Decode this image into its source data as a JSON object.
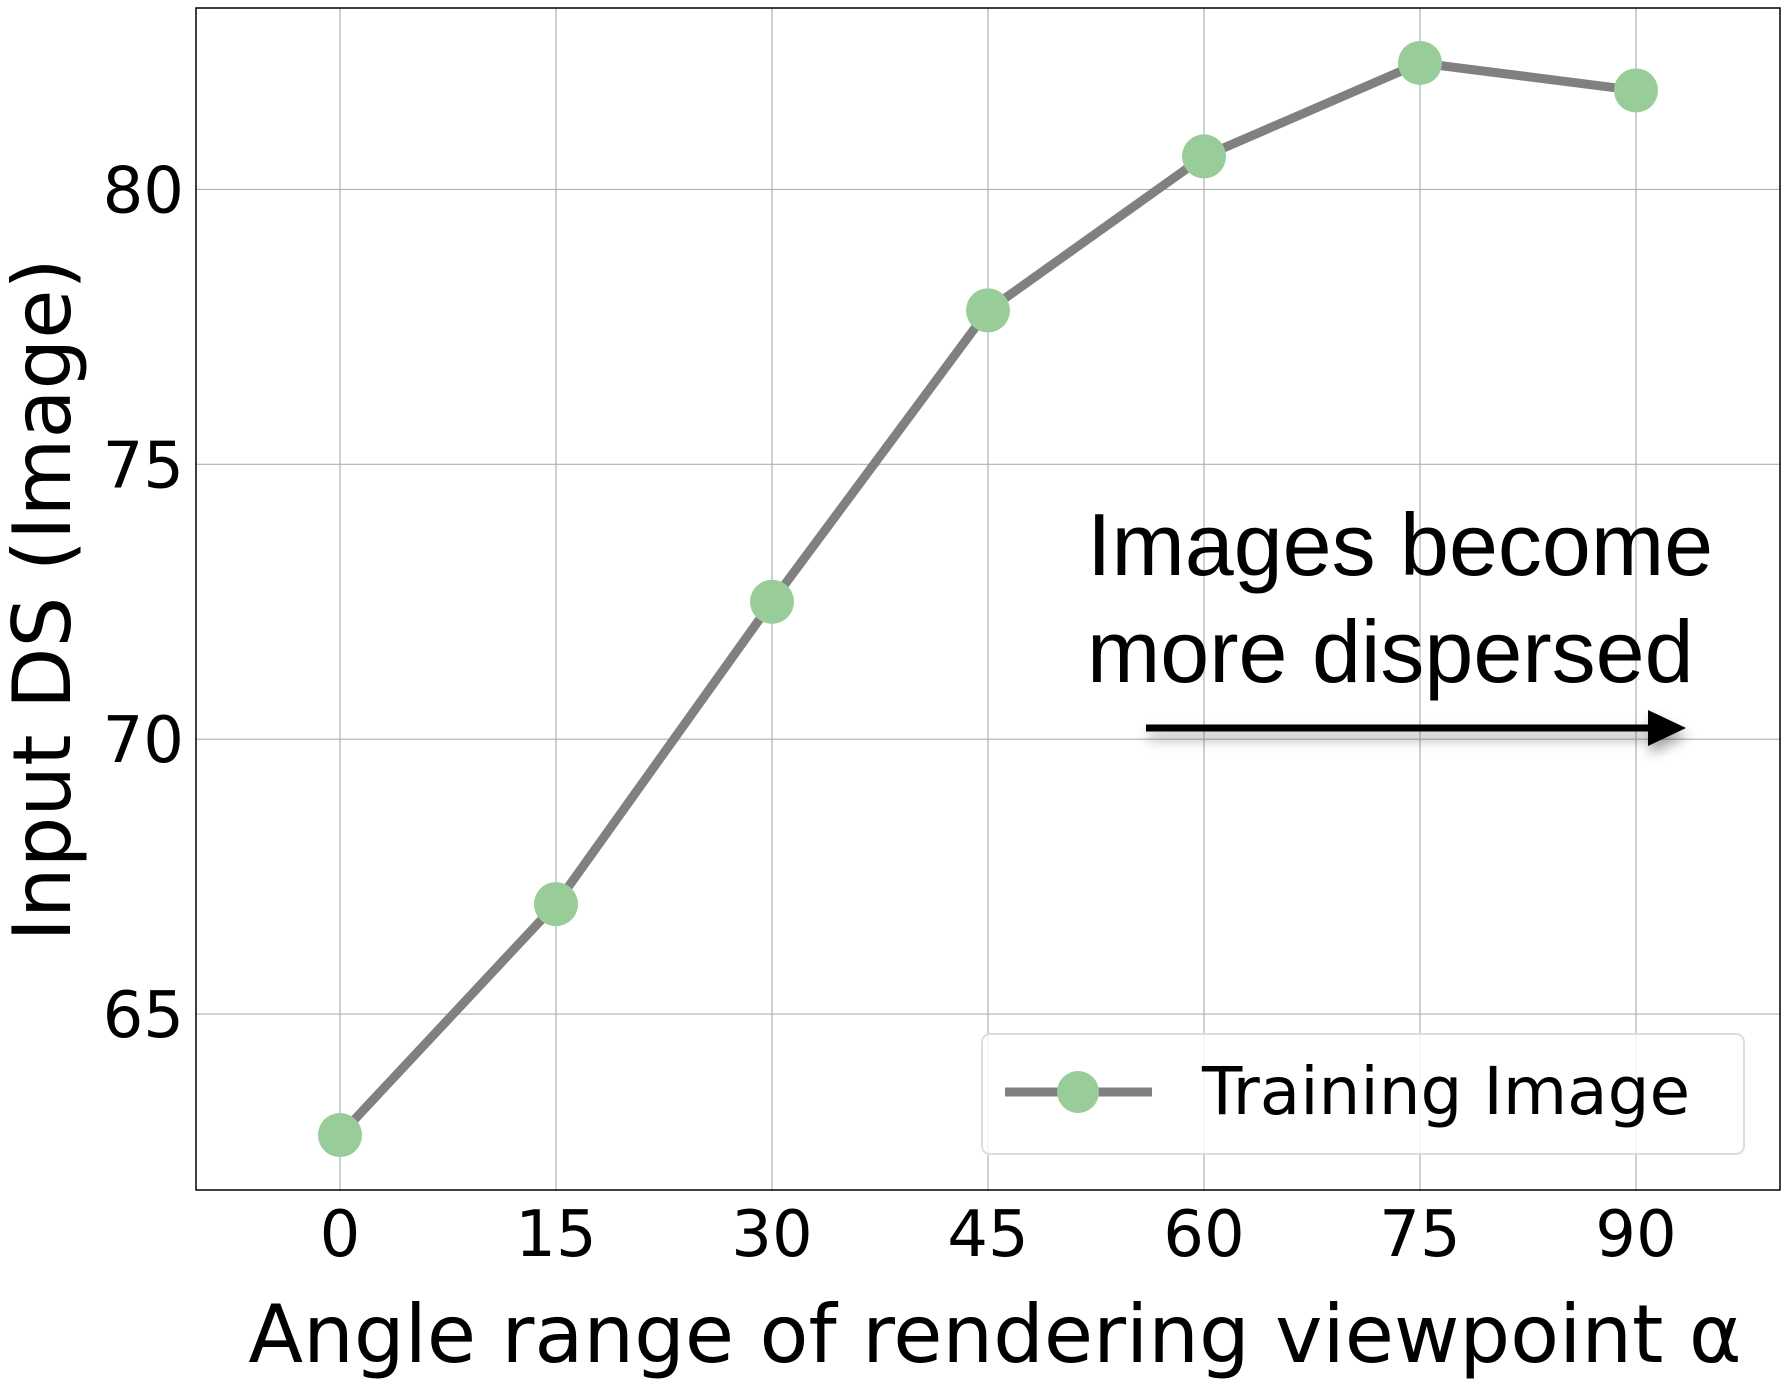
{
  "chart_data": {
    "type": "line",
    "x": [
      0,
      15,
      30,
      45,
      60,
      75,
      90
    ],
    "x_tick_labels": [
      "0",
      "15",
      "30",
      "45",
      "60",
      "75",
      "90"
    ],
    "xlim": [
      -10,
      100
    ],
    "y_ticks": [
      65,
      70,
      75,
      80
    ],
    "y_tick_labels": [
      "65",
      "70",
      "75",
      "80"
    ],
    "ylim": [
      61.8,
      83.3
    ],
    "xlabel": "Angle range of rendering viewpoint α",
    "ylabel": "Input DS (Image)",
    "grid": true,
    "series": [
      {
        "name": "Training Image",
        "values": [
          62.8,
          67.0,
          72.5,
          77.8,
          80.6,
          82.3,
          81.8
        ],
        "line_color": "#808080",
        "marker_color": "#98cc98"
      }
    ],
    "legend": {
      "position": "lower-right",
      "label": "Training Image"
    },
    "annotation": {
      "line1": "Images become",
      "line2": "more dispersed",
      "arrow_direction": "right"
    }
  }
}
